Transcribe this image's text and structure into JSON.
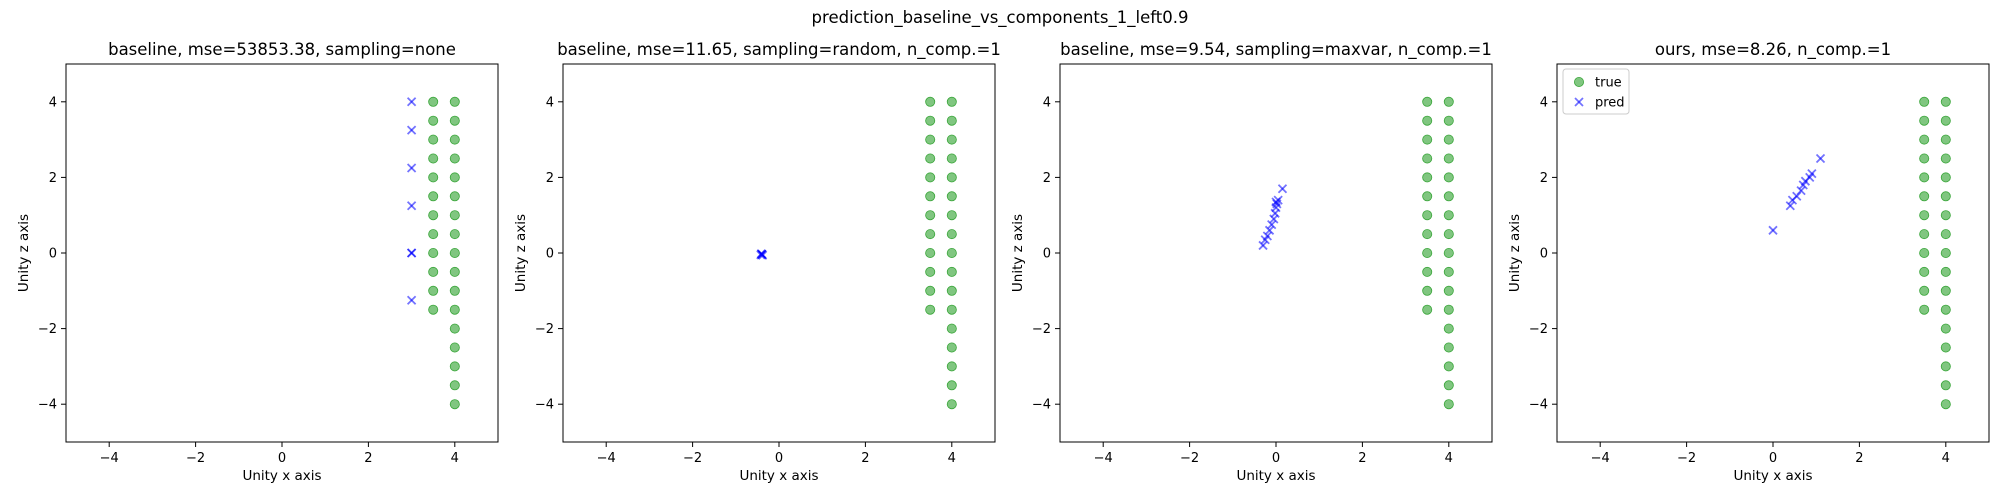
{
  "suptitle": "prediction_baseline_vs_components_1_left0.9",
  "colors": {
    "true": "#2ca02c",
    "pred": "#0000ff"
  },
  "chart_data": [
    {
      "type": "scatter",
      "title": "baseline, mse=53853.38, sampling=none",
      "xlabel": "Unity x axis",
      "ylabel": "Unity z axis",
      "xlim": [
        -5,
        5
      ],
      "ylim": [
        -5,
        5
      ],
      "xticks": [
        -4,
        -2,
        0,
        2,
        4
      ],
      "yticks": [
        -4,
        -2,
        0,
        2,
        4
      ],
      "legend": null,
      "true_points": [
        [
          3.5,
          4
        ],
        [
          3.5,
          3.5
        ],
        [
          3.5,
          3
        ],
        [
          3.5,
          2.5
        ],
        [
          3.5,
          2
        ],
        [
          3.5,
          1.5
        ],
        [
          3.5,
          1
        ],
        [
          3.5,
          0.5
        ],
        [
          3.5,
          0
        ],
        [
          3.5,
          -0.5
        ],
        [
          3.5,
          -1
        ],
        [
          3.5,
          -1.5
        ],
        [
          4,
          4
        ],
        [
          4,
          3.5
        ],
        [
          4,
          3
        ],
        [
          4,
          2.5
        ],
        [
          4,
          2
        ],
        [
          4,
          1.5
        ],
        [
          4,
          1
        ],
        [
          4,
          0.5
        ],
        [
          4,
          0
        ],
        [
          4,
          -0.5
        ],
        [
          4,
          -1
        ],
        [
          4,
          -1.5
        ],
        [
          4,
          -2
        ],
        [
          4,
          -2.5
        ],
        [
          4,
          -3
        ],
        [
          4,
          -3.5
        ],
        [
          4,
          -4
        ]
      ],
      "pred_points": [
        [
          3.0,
          4.0
        ],
        [
          3.0,
          3.25
        ],
        [
          3.0,
          2.25
        ],
        [
          3.0,
          1.25
        ],
        [
          3.0,
          0.0
        ],
        [
          3.0,
          0.0
        ],
        [
          3.0,
          -1.25
        ]
      ]
    },
    {
      "type": "scatter",
      "title": "baseline, mse=11.65, sampling=random, n_comp.=1",
      "xlabel": "Unity x axis",
      "ylabel": "Unity z axis",
      "xlim": [
        -5,
        5
      ],
      "ylim": [
        -5,
        5
      ],
      "xticks": [
        -4,
        -2,
        0,
        2,
        4
      ],
      "yticks": [
        -4,
        -2,
        0,
        2,
        4
      ],
      "legend": null,
      "true_points": [
        [
          3.5,
          4
        ],
        [
          3.5,
          3.5
        ],
        [
          3.5,
          3
        ],
        [
          3.5,
          2.5
        ],
        [
          3.5,
          2
        ],
        [
          3.5,
          1.5
        ],
        [
          3.5,
          1
        ],
        [
          3.5,
          0.5
        ],
        [
          3.5,
          0
        ],
        [
          3.5,
          -0.5
        ],
        [
          3.5,
          -1
        ],
        [
          3.5,
          -1.5
        ],
        [
          4,
          4
        ],
        [
          4,
          3.5
        ],
        [
          4,
          3
        ],
        [
          4,
          2.5
        ],
        [
          4,
          2
        ],
        [
          4,
          1.5
        ],
        [
          4,
          1
        ],
        [
          4,
          0.5
        ],
        [
          4,
          0
        ],
        [
          4,
          -0.5
        ],
        [
          4,
          -1
        ],
        [
          4,
          -1.5
        ],
        [
          4,
          -2
        ],
        [
          4,
          -2.5
        ],
        [
          4,
          -3
        ],
        [
          4,
          -3.5
        ],
        [
          4,
          -4
        ]
      ],
      "pred_points": [
        [
          -0.42,
          -0.05
        ],
        [
          -0.4,
          -0.03
        ],
        [
          -0.38,
          -0.06
        ],
        [
          -0.41,
          -0.02
        ],
        [
          -0.39,
          -0.04
        ]
      ]
    },
    {
      "type": "scatter",
      "title": "baseline, mse=9.54, sampling=maxvar, n_comp.=1",
      "xlabel": "Unity x axis",
      "ylabel": "Unity z axis",
      "xlim": [
        -5,
        5
      ],
      "ylim": [
        -5,
        5
      ],
      "xticks": [
        -4,
        -2,
        0,
        2,
        4
      ],
      "yticks": [
        -4,
        -2,
        0,
        2,
        4
      ],
      "legend": null,
      "true_points": [
        [
          3.5,
          4
        ],
        [
          3.5,
          3.5
        ],
        [
          3.5,
          3
        ],
        [
          3.5,
          2.5
        ],
        [
          3.5,
          2
        ],
        [
          3.5,
          1.5
        ],
        [
          3.5,
          1
        ],
        [
          3.5,
          0.5
        ],
        [
          3.5,
          0
        ],
        [
          3.5,
          -0.5
        ],
        [
          3.5,
          -1
        ],
        [
          3.5,
          -1.5
        ],
        [
          4,
          4
        ],
        [
          4,
          3.5
        ],
        [
          4,
          3
        ],
        [
          4,
          2.5
        ],
        [
          4,
          2
        ],
        [
          4,
          1.5
        ],
        [
          4,
          1
        ],
        [
          4,
          0.5
        ],
        [
          4,
          0
        ],
        [
          4,
          -0.5
        ],
        [
          4,
          -1
        ],
        [
          4,
          -1.5
        ],
        [
          4,
          -2
        ],
        [
          4,
          -2.5
        ],
        [
          4,
          -3
        ],
        [
          4,
          -3.5
        ],
        [
          4,
          -4
        ]
      ],
      "pred_points": [
        [
          -0.3,
          0.2
        ],
        [
          -0.25,
          0.35
        ],
        [
          -0.2,
          0.45
        ],
        [
          -0.15,
          0.6
        ],
        [
          -0.1,
          0.75
        ],
        [
          -0.05,
          0.9
        ],
        [
          -0.02,
          1.05
        ],
        [
          0.0,
          1.2
        ],
        [
          0.02,
          1.3
        ],
        [
          0.05,
          1.4
        ],
        [
          0.0,
          1.35
        ],
        [
          0.15,
          1.7
        ]
      ]
    },
    {
      "type": "scatter",
      "title": "ours, mse=8.26, n_comp.=1",
      "xlabel": "Unity x axis",
      "ylabel": "Unity z axis",
      "xlim": [
        -5,
        5
      ],
      "ylim": [
        -5,
        5
      ],
      "xticks": [
        -4,
        -2,
        0,
        2,
        4
      ],
      "yticks": [
        -4,
        -2,
        0,
        2,
        4
      ],
      "legend": {
        "position": "top-left",
        "entries": [
          "true",
          "pred"
        ]
      },
      "true_points": [
        [
          3.5,
          4
        ],
        [
          3.5,
          3.5
        ],
        [
          3.5,
          3
        ],
        [
          3.5,
          2.5
        ],
        [
          3.5,
          2
        ],
        [
          3.5,
          1.5
        ],
        [
          3.5,
          1
        ],
        [
          3.5,
          0.5
        ],
        [
          3.5,
          0
        ],
        [
          3.5,
          -0.5
        ],
        [
          3.5,
          -1
        ],
        [
          3.5,
          -1.5
        ],
        [
          4,
          4
        ],
        [
          4,
          3.5
        ],
        [
          4,
          3
        ],
        [
          4,
          2.5
        ],
        [
          4,
          2
        ],
        [
          4,
          1.5
        ],
        [
          4,
          1
        ],
        [
          4,
          0.5
        ],
        [
          4,
          0
        ],
        [
          4,
          -0.5
        ],
        [
          4,
          -1
        ],
        [
          4,
          -1.5
        ],
        [
          4,
          -2
        ],
        [
          4,
          -2.5
        ],
        [
          4,
          -3
        ],
        [
          4,
          -3.5
        ],
        [
          4,
          -4
        ]
      ],
      "pred_points": [
        [
          0.0,
          0.6
        ],
        [
          0.4,
          1.25
        ],
        [
          0.45,
          1.4
        ],
        [
          0.55,
          1.5
        ],
        [
          0.65,
          1.65
        ],
        [
          0.7,
          1.8
        ],
        [
          0.75,
          1.9
        ],
        [
          0.85,
          2.0
        ],
        [
          0.9,
          2.1
        ],
        [
          1.1,
          2.5
        ]
      ]
    }
  ]
}
